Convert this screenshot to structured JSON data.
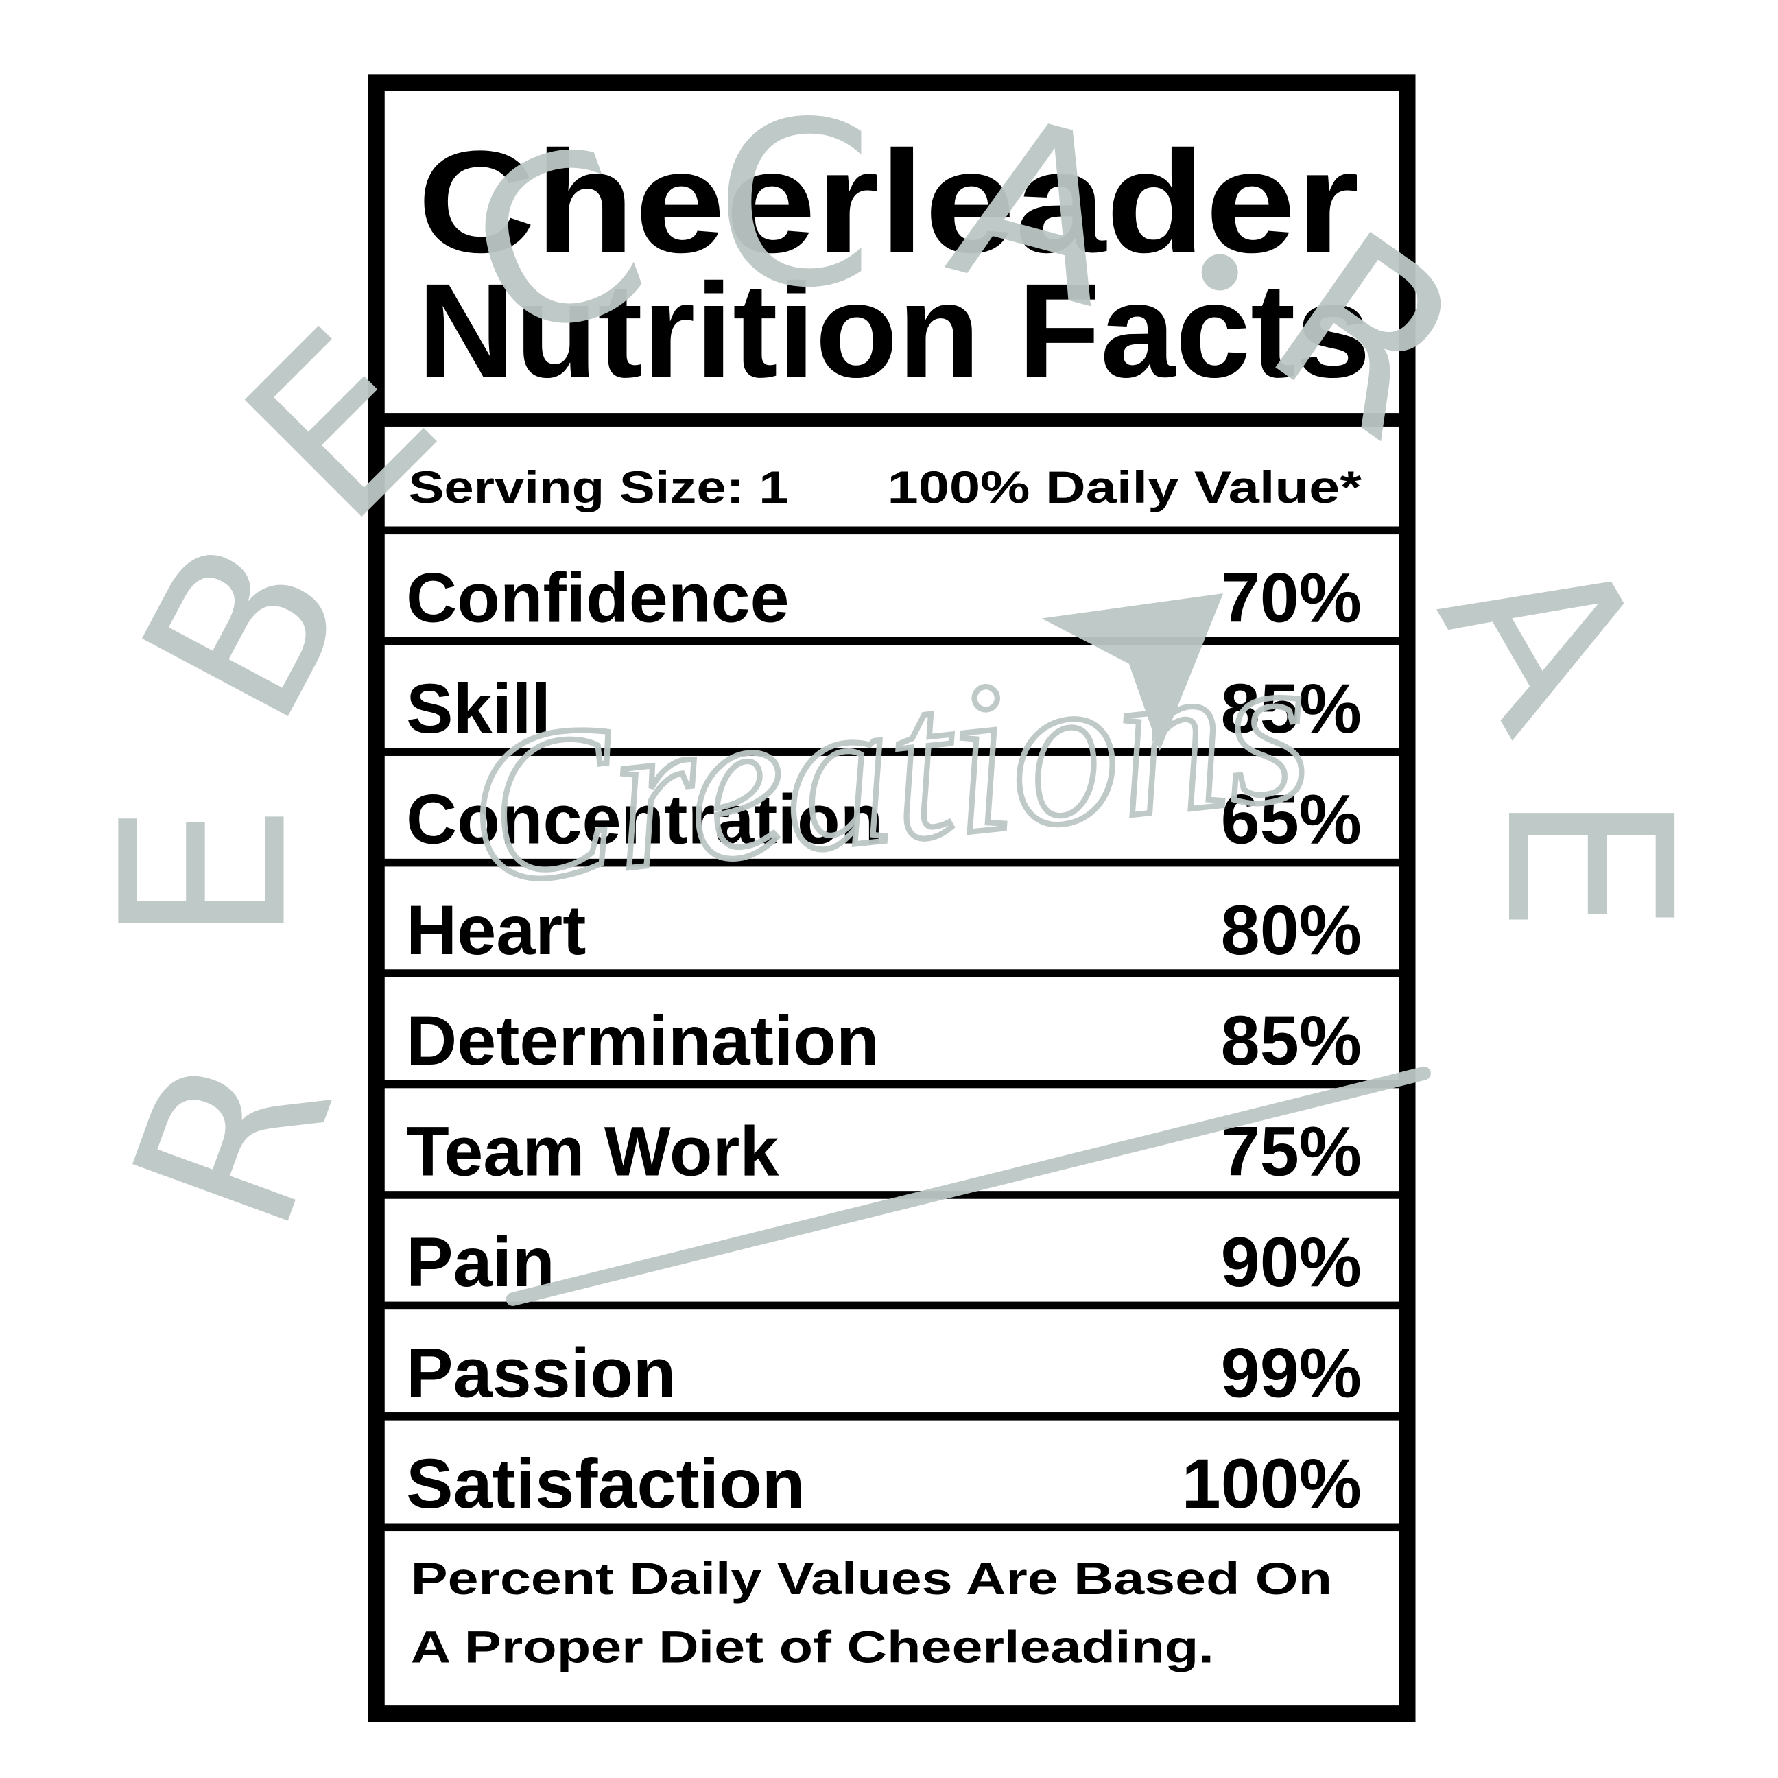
{
  "header": {
    "title": "Cheerleader",
    "subtitle": "Nutrition Facts"
  },
  "serving": {
    "size": "Serving Size: 1",
    "daily_value": "100% Daily Value*"
  },
  "rows": [
    {
      "label": "Confidence",
      "value": "70%"
    },
    {
      "label": "Skill",
      "value": "85%"
    },
    {
      "label": "Concentration",
      "value": "65%"
    },
    {
      "label": "Heart",
      "value": "80%"
    },
    {
      "label": "Determination",
      "value": "85%"
    },
    {
      "label": "Team Work",
      "value": "75%"
    },
    {
      "label": "Pain",
      "value": "90%"
    },
    {
      "label": "Passion",
      "value": "99%"
    },
    {
      "label": "Satisfaction",
      "value": "100%"
    }
  ],
  "footer": {
    "line1": "Percent Daily Values Are Based On",
    "line2": "A Proper Diet of Cheerleading."
  },
  "watermark": {
    "letters": [
      "R",
      "E",
      "B",
      "E",
      "C",
      "C",
      "A",
      "R",
      "A",
      "E"
    ],
    "script": "Creations"
  }
}
